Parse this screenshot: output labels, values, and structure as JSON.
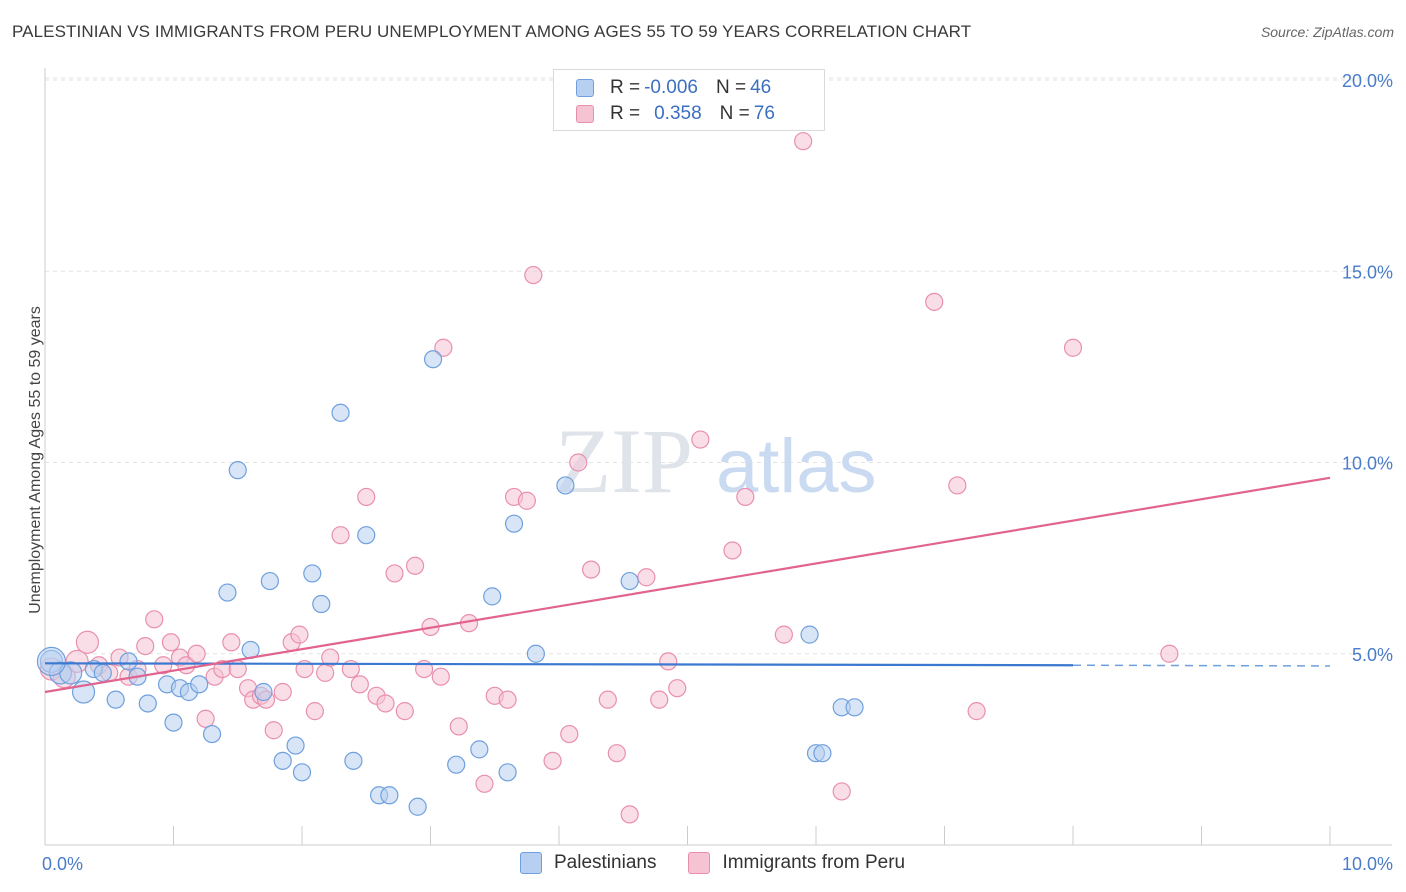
{
  "header": {
    "title": "PALESTINIAN VS IMMIGRANTS FROM PERU UNEMPLOYMENT AMONG AGES 55 TO 59 YEARS CORRELATION CHART",
    "source": "Source: ZipAtlas.com"
  },
  "legend": {
    "rows": [
      {
        "r_label": "R = ",
        "r_value": "-0.006",
        "n_label": "N = ",
        "n_value": "46"
      },
      {
        "r_label": "R = ",
        "r_value": "0.358",
        "n_label": "N = ",
        "n_value": "76"
      }
    ]
  },
  "bottom_legend": {
    "series_a": "Palestinians",
    "series_b": "Immigrants from Peru"
  },
  "watermark": {
    "zip": "ZIP",
    "atlas": "atlas"
  },
  "colors": {
    "blue": "#6fa0dd",
    "blue_fill": "#b7d0f1",
    "blue_line": "#3b78d0",
    "pink": "#e98fae",
    "pink_fill": "#f6c3d3",
    "pink_line": "#e0648f",
    "axis_text": "#4a7cc9"
  },
  "chart_data": {
    "type": "scatter",
    "title": "PALESTINIAN VS IMMIGRANTS FROM PERU UNEMPLOYMENT AMONG AGES 55 TO 59 YEARS CORRELATION CHART",
    "xlabel": "",
    "ylabel": "Unemployment Among Ages 55 to 59 years",
    "xlim": [
      0,
      10
    ],
    "ylim": [
      0,
      20
    ],
    "x_ticks": [
      {
        "value": 0,
        "label": "0.0%"
      },
      {
        "value": 10,
        "label": "10.0%"
      }
    ],
    "y_ticks": [
      {
        "value": 5,
        "label": "5.0%"
      },
      {
        "value": 10,
        "label": "10.0%"
      },
      {
        "value": 15,
        "label": "15.0%"
      },
      {
        "value": 20,
        "label": "20.0%"
      }
    ],
    "series": [
      {
        "name": "Palestinians",
        "r": -0.006,
        "n": 46,
        "trend": {
          "x0": 0,
          "y0": 4.75,
          "x1": 8.0,
          "y1": 4.7,
          "dashed_to": 10,
          "dashed_y": 4.68
        },
        "points": [
          [
            0.05,
            4.8
          ],
          [
            0.12,
            4.5
          ],
          [
            0.2,
            4.5
          ],
          [
            0.3,
            4.0
          ],
          [
            0.38,
            4.6
          ],
          [
            0.45,
            4.5
          ],
          [
            0.55,
            3.8
          ],
          [
            0.65,
            4.8
          ],
          [
            0.72,
            4.4
          ],
          [
            0.8,
            3.7
          ],
          [
            0.95,
            4.2
          ],
          [
            1.0,
            3.2
          ],
          [
            1.05,
            4.1
          ],
          [
            1.12,
            4.0
          ],
          [
            1.2,
            4.2
          ],
          [
            1.3,
            2.9
          ],
          [
            1.42,
            6.6
          ],
          [
            1.5,
            9.8
          ],
          [
            1.6,
            5.1
          ],
          [
            1.7,
            4.0
          ],
          [
            1.75,
            6.9
          ],
          [
            1.85,
            2.2
          ],
          [
            1.95,
            2.6
          ],
          [
            2.0,
            1.9
          ],
          [
            2.08,
            7.1
          ],
          [
            2.15,
            6.3
          ],
          [
            2.3,
            11.3
          ],
          [
            2.4,
            2.2
          ],
          [
            2.5,
            8.1
          ],
          [
            2.6,
            1.3
          ],
          [
            2.68,
            1.3
          ],
          [
            2.9,
            1.0
          ],
          [
            3.02,
            12.7
          ],
          [
            3.2,
            2.1
          ],
          [
            3.38,
            2.5
          ],
          [
            3.48,
            6.5
          ],
          [
            3.6,
            1.9
          ],
          [
            3.65,
            8.4
          ],
          [
            3.82,
            5.0
          ],
          [
            4.05,
            9.4
          ],
          [
            4.55,
            6.9
          ],
          [
            5.95,
            5.5
          ],
          [
            6.0,
            2.4
          ],
          [
            6.05,
            2.4
          ],
          [
            6.2,
            3.6
          ],
          [
            6.3,
            3.6
          ]
        ]
      },
      {
        "name": "Immigrants from Peru",
        "r": 0.358,
        "n": 76,
        "trend": {
          "x0": 0,
          "y0": 4.0,
          "x1": 10,
          "y1": 9.6
        },
        "points": [
          [
            0.05,
            4.6
          ],
          [
            0.15,
            4.4
          ],
          [
            0.25,
            4.8
          ],
          [
            0.33,
            5.3
          ],
          [
            0.42,
            4.7
          ],
          [
            0.5,
            4.5
          ],
          [
            0.58,
            4.9
          ],
          [
            0.65,
            4.4
          ],
          [
            0.72,
            4.6
          ],
          [
            0.78,
            5.2
          ],
          [
            0.85,
            5.9
          ],
          [
            0.92,
            4.7
          ],
          [
            0.98,
            5.3
          ],
          [
            1.05,
            4.9
          ],
          [
            1.1,
            4.7
          ],
          [
            1.18,
            5.0
          ],
          [
            1.25,
            3.3
          ],
          [
            1.32,
            4.4
          ],
          [
            1.38,
            4.6
          ],
          [
            1.45,
            5.3
          ],
          [
            1.5,
            4.6
          ],
          [
            1.58,
            4.1
          ],
          [
            1.62,
            3.8
          ],
          [
            1.68,
            3.9
          ],
          [
            1.72,
            3.8
          ],
          [
            1.78,
            3.0
          ],
          [
            1.85,
            4.0
          ],
          [
            1.92,
            5.3
          ],
          [
            1.98,
            5.5
          ],
          [
            2.02,
            4.6
          ],
          [
            2.1,
            3.5
          ],
          [
            2.18,
            4.5
          ],
          [
            2.22,
            4.9
          ],
          [
            2.3,
            8.1
          ],
          [
            2.38,
            4.6
          ],
          [
            2.45,
            4.2
          ],
          [
            2.5,
            9.1
          ],
          [
            2.58,
            3.9
          ],
          [
            2.65,
            3.7
          ],
          [
            2.72,
            7.1
          ],
          [
            2.8,
            3.5
          ],
          [
            2.88,
            7.3
          ],
          [
            2.95,
            4.6
          ],
          [
            3.0,
            5.7
          ],
          [
            3.08,
            4.4
          ],
          [
            3.1,
            13.0
          ],
          [
            3.22,
            3.1
          ],
          [
            3.3,
            5.8
          ],
          [
            3.42,
            1.6
          ],
          [
            3.5,
            3.9
          ],
          [
            3.6,
            3.8
          ],
          [
            3.65,
            9.1
          ],
          [
            3.75,
            9.0
          ],
          [
            3.8,
            14.9
          ],
          [
            3.95,
            2.2
          ],
          [
            4.08,
            2.9
          ],
          [
            4.15,
            10.0
          ],
          [
            4.25,
            7.2
          ],
          [
            4.38,
            3.8
          ],
          [
            4.45,
            2.4
          ],
          [
            4.55,
            0.8
          ],
          [
            4.68,
            7.0
          ],
          [
            4.78,
            3.8
          ],
          [
            4.85,
            4.8
          ],
          [
            4.92,
            4.1
          ],
          [
            5.1,
            10.6
          ],
          [
            5.35,
            7.7
          ],
          [
            5.45,
            9.1
          ],
          [
            5.75,
            5.5
          ],
          [
            5.9,
            18.4
          ],
          [
            6.2,
            1.4
          ],
          [
            6.92,
            14.2
          ],
          [
            7.1,
            9.4
          ],
          [
            7.25,
            3.5
          ],
          [
            8.0,
            13.0
          ],
          [
            8.75,
            5.0
          ]
        ]
      }
    ]
  }
}
